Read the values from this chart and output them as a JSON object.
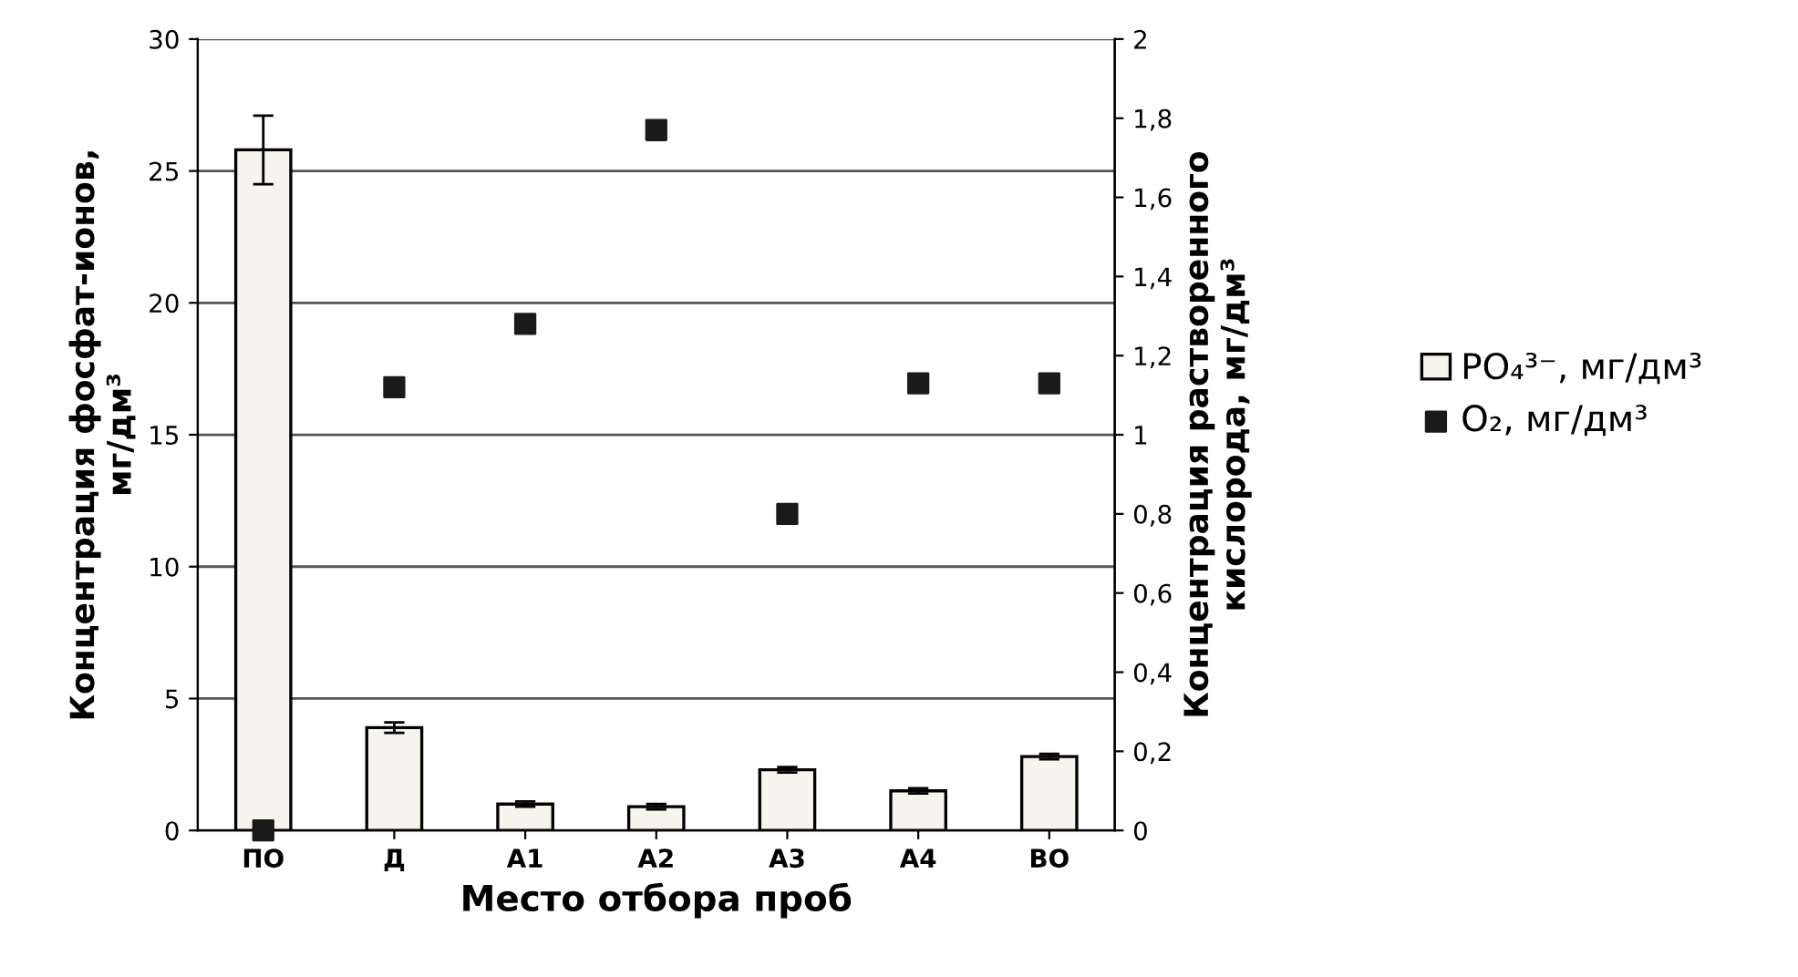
{
  "chart_data": {
    "type": "bar",
    "xlabel": "Место отбора проб",
    "ylabel": "Концентрация фосфат-ионов,\nмг/дм³",
    "y2label": "Концентрация растворенного\nкислорода, мг/дм³",
    "categories": [
      "ПО",
      "Д",
      "А1",
      "А2",
      "А3",
      "А4",
      "ВО"
    ],
    "series": [
      {
        "name": "PO₄³⁻, мг/дм³",
        "color": "#f7f4ee",
        "values": [
          25.8,
          3.9,
          1.0,
          0.9,
          2.3,
          1.5,
          2.8
        ],
        "errors": [
          1.3,
          0.2,
          0.1,
          0.1,
          0.1,
          0.1,
          0.1
        ]
      },
      {
        "name": "O₂, мг/дм³",
        "type": "scatter",
        "axis": "y2",
        "marker": "square",
        "color": "#1a1a1a",
        "values": [
          0,
          1.12,
          1.28,
          1.77,
          0.8,
          1.13,
          1.13
        ]
      }
    ],
    "ylim": [
      0,
      30
    ],
    "yticks": [
      0,
      5,
      10,
      15,
      20,
      25,
      30
    ],
    "y2lim": [
      0,
      2
    ],
    "y2ticks": [
      0,
      {
        "value": 0.2,
        "label": "0,2"
      },
      {
        "value": 0.4,
        "label": "0,4"
      },
      {
        "value": 0.6,
        "label": "0,6"
      },
      {
        "value": 0.8,
        "label": "0,8"
      },
      1,
      {
        "value": 1.2,
        "label": "1,2"
      },
      {
        "value": 1.4,
        "label": "1,4"
      },
      {
        "value": 1.6,
        "label": "1,6"
      },
      {
        "value": 1.8,
        "label": "1,8"
      },
      2
    ],
    "grid": "y",
    "legend": "right"
  }
}
